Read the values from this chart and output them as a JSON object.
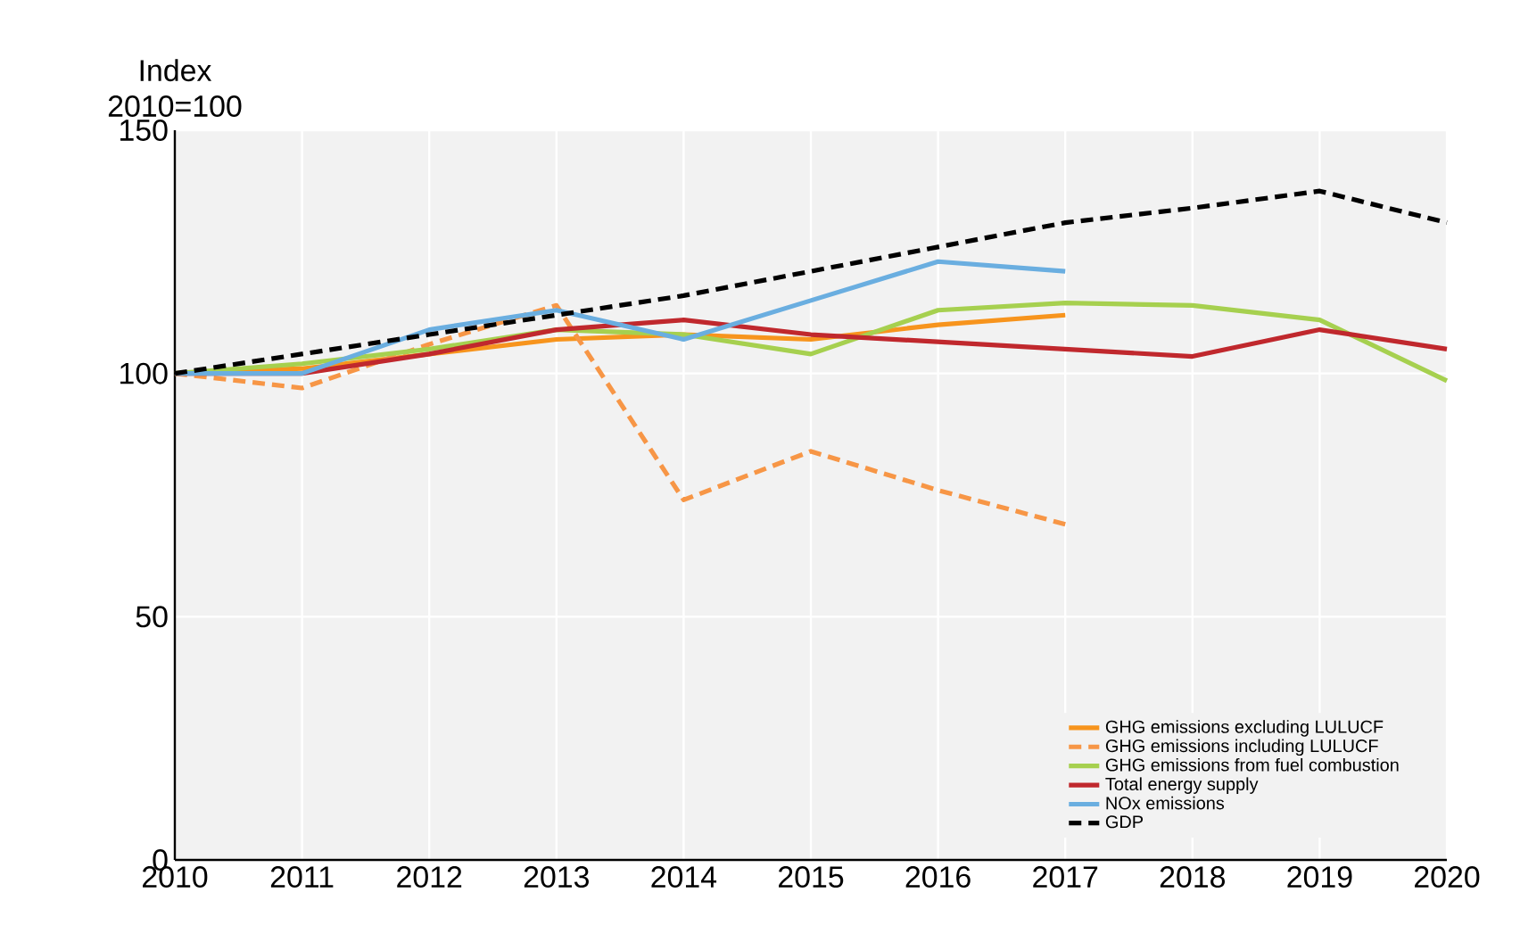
{
  "chart_data": {
    "type": "line",
    "ylabel": "Index 2010=100",
    "x": [
      2010,
      2011,
      2012,
      2013,
      2014,
      2015,
      2016,
      2017,
      2018,
      2019,
      2020
    ],
    "xlim": [
      2010,
      2020
    ],
    "xticks": [
      2010,
      2011,
      2012,
      2013,
      2014,
      2015,
      2016,
      2017,
      2018,
      2019,
      2020
    ],
    "ylim": [
      0,
      150
    ],
    "yticks": [
      0,
      50,
      100,
      150
    ],
    "grid": true,
    "legend": "bottom right",
    "marker": "none",
    "series": [
      {
        "name": "GHG emissions excluding LULUCF",
        "color": "#f7941d",
        "line_style": "solid",
        "values": [
          100,
          101,
          104,
          107,
          108,
          107,
          110,
          112,
          null,
          null,
          null
        ]
      },
      {
        "name": "GHG emissions including LULUCF",
        "color": "#f79646",
        "line_style": "dashed",
        "values": [
          100,
          97,
          106,
          114,
          74,
          84,
          76,
          69,
          null,
          null,
          null
        ]
      },
      {
        "name": "GHG emissions from fuel combustion",
        "color": "#a6d04f",
        "line_style": "solid",
        "values": [
          100,
          102,
          105,
          109,
          108,
          104,
          113,
          114.5,
          114,
          111,
          98.5
        ]
      },
      {
        "name": "Total energy supply",
        "color": "#c0282d",
        "line_style": "solid",
        "values": [
          100,
          100,
          104,
          109,
          111,
          108,
          106.5,
          105,
          103.5,
          109,
          105
        ]
      },
      {
        "name": "NOx emissions",
        "color": "#6aaee0",
        "line_style": "solid",
        "values": [
          100,
          100,
          109,
          113,
          107,
          115,
          123,
          121,
          null,
          null,
          null
        ]
      },
      {
        "name": "GDP",
        "color": "#000000",
        "line_style": "dashed",
        "values": [
          100,
          104,
          108,
          112,
          116,
          121,
          126,
          131,
          134,
          137.5,
          131
        ]
      }
    ]
  }
}
